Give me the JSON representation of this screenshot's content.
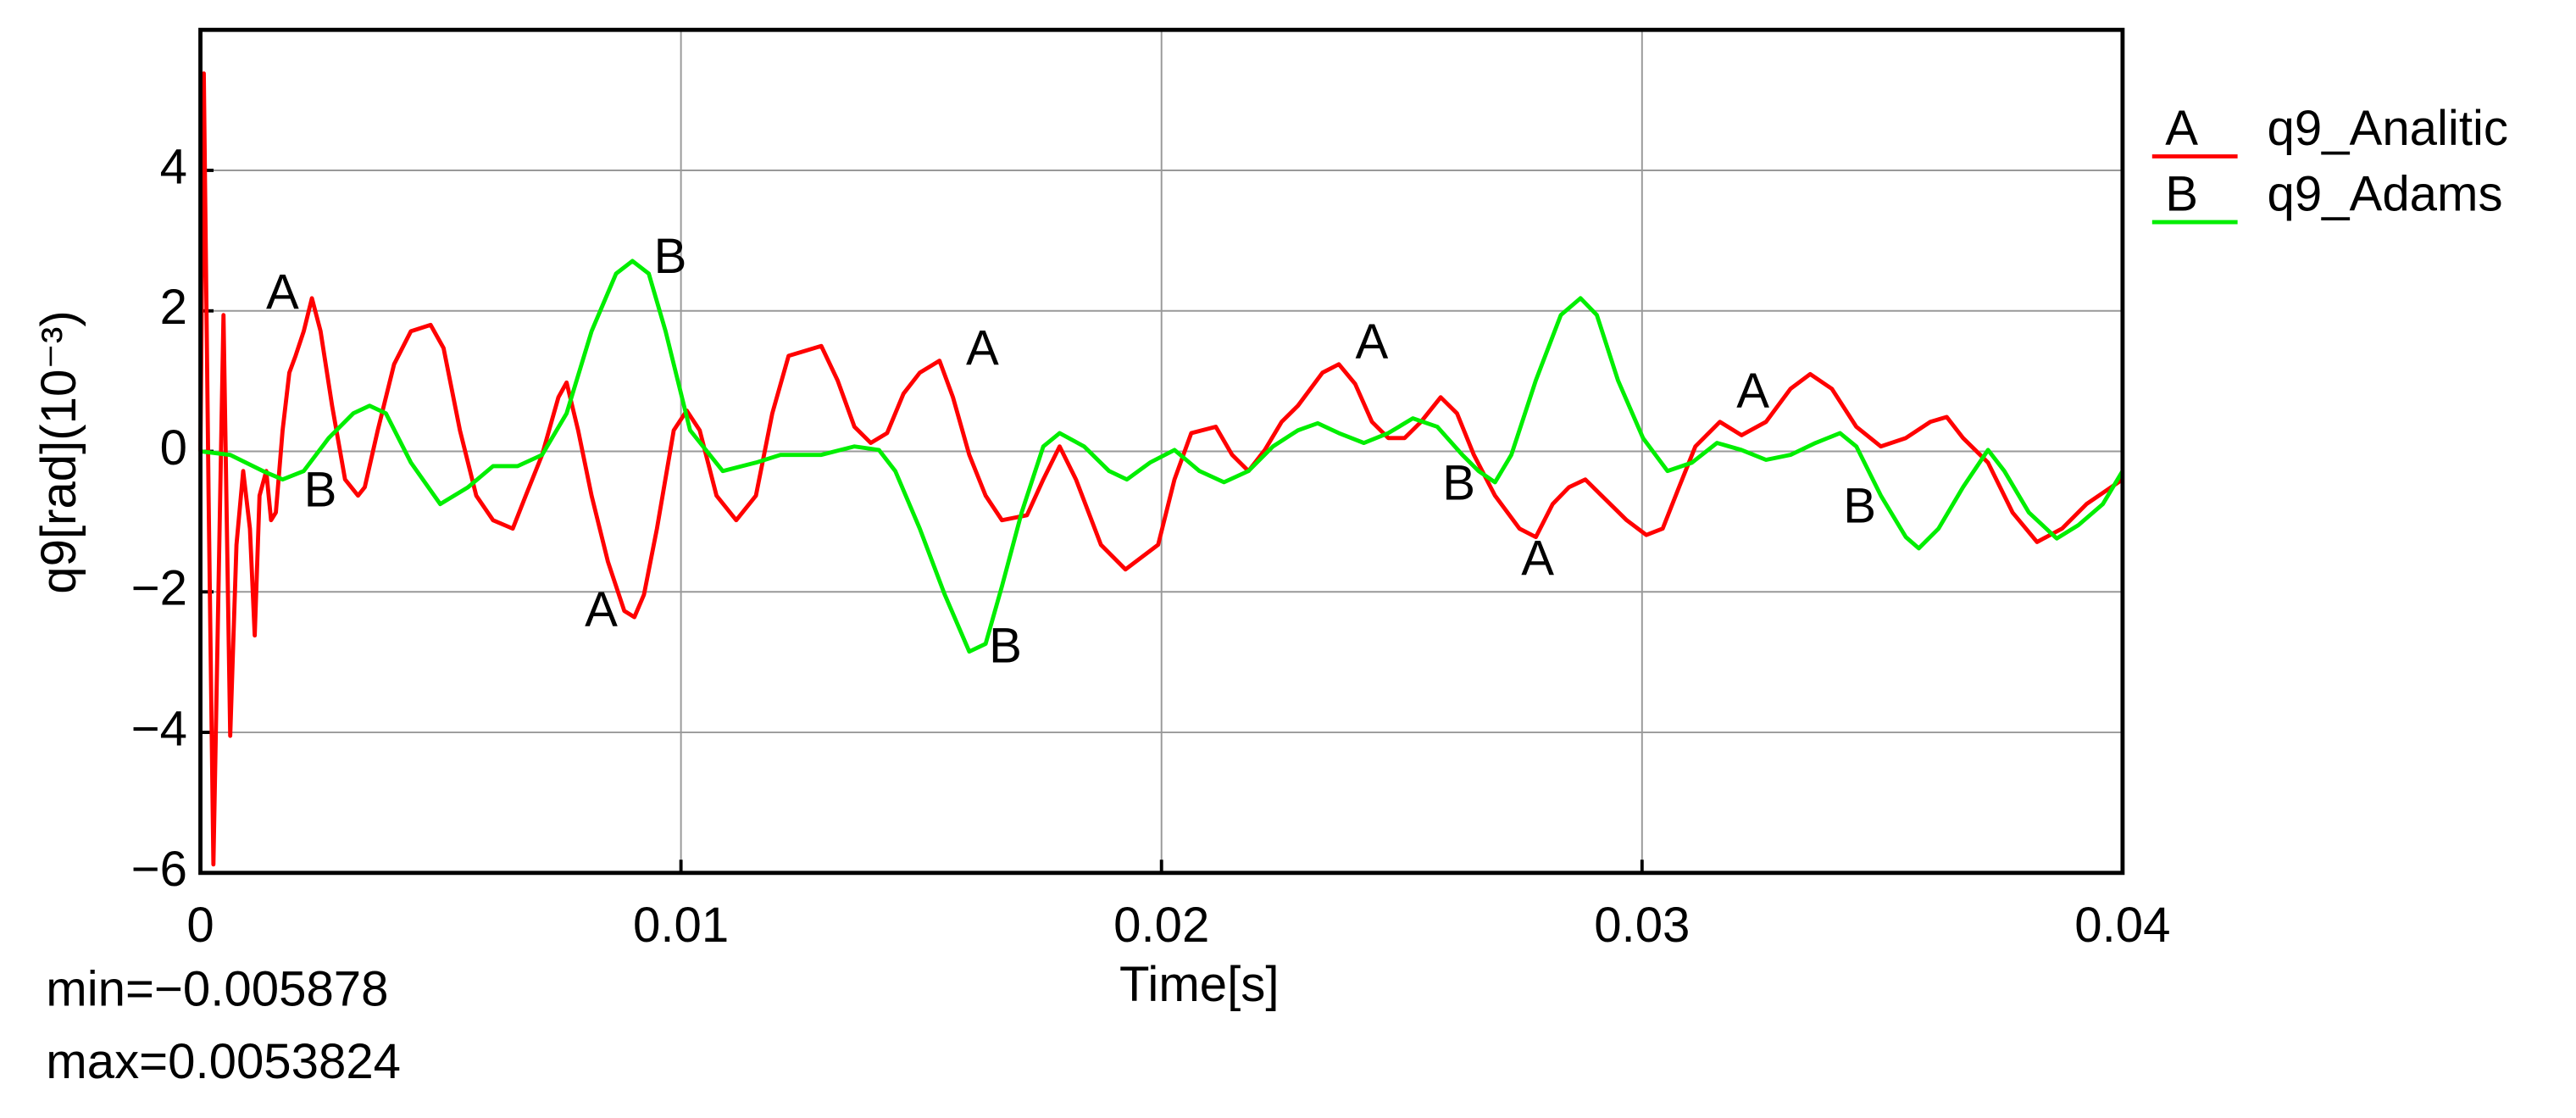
{
  "chart_data": {
    "type": "line",
    "x_label": "Time[s]",
    "y_label": "q9[rad](10⁻³)",
    "annotations": [
      "min=−0.005878",
      "max=0.0053824"
    ],
    "xlim": [
      0,
      0.04
    ],
    "xticks": [
      0,
      0.01,
      0.02,
      0.03,
      0.04
    ],
    "ylim": [
      -6,
      6
    ],
    "yticks": [
      {
        "value": -6,
        "label": "−6"
      },
      {
        "value": -4,
        "label": "−4"
      },
      {
        "value": -2,
        "label": "−2"
      },
      0,
      2,
      4
    ],
    "grid": true,
    "legend": "outside-right",
    "series": [
      {
        "name": "q9_Analitic",
        "label": "A",
        "color": "#ff0000",
        "x": [
          0,
          7e-05,
          0.00017,
          0.00027,
          0.00038,
          0.00048,
          0.00062,
          0.00075,
          0.00089,
          0.00103,
          0.00113,
          0.00123,
          0.00137,
          0.00147,
          0.00157,
          0.00171,
          0.00185,
          0.00198,
          0.00215,
          0.00232,
          0.0025,
          0.00274,
          0.00301,
          0.00328,
          0.00342,
          0.00369,
          0.00403,
          0.00438,
          0.00479,
          0.00506,
          0.0054,
          0.00574,
          0.00609,
          0.0065,
          0.00677,
          0.00711,
          0.00745,
          0.00762,
          0.00786,
          0.00814,
          0.00848,
          0.00882,
          0.00903,
          0.00923,
          0.0095,
          0.00985,
          0.01012,
          0.01039,
          0.01074,
          0.01115,
          0.01156,
          0.0119,
          0.01224,
          0.01292,
          0.01326,
          0.01361,
          0.01395,
          0.01429,
          0.01463,
          0.01497,
          0.01538,
          0.01566,
          0.016,
          0.01634,
          0.01668,
          0.0172,
          0.01754,
          0.01788,
          0.01822,
          0.01874,
          0.01925,
          0.01993,
          0.02027,
          0.02062,
          0.02113,
          0.02147,
          0.02181,
          0.02215,
          0.0225,
          0.02284,
          0.02335,
          0.02369,
          0.02403,
          0.02438,
          0.02472,
          0.02506,
          0.0254,
          0.02581,
          0.02615,
          0.0265,
          0.02694,
          0.02745,
          0.02779,
          0.02814,
          0.02848,
          0.02882,
          0.02916,
          0.02968,
          0.03009,
          0.03043,
          0.03077,
          0.03111,
          0.03162,
          0.03207,
          0.03258,
          0.03309,
          0.0335,
          0.03395,
          0.03446,
          0.03497,
          0.03549,
          0.036,
          0.03634,
          0.03668,
          0.0372,
          0.03771,
          0.03822,
          0.03874,
          0.03925,
          0.04
        ],
        "values": [
          0,
          5.38,
          -0.63,
          -5.88,
          -1.8,
          1.94,
          -4.05,
          -1.33,
          -0.28,
          -1.1,
          -2.62,
          -0.63,
          -0.28,
          -0.98,
          -0.87,
          0.3,
          1.12,
          1.36,
          1.71,
          2.18,
          1.71,
          0.65,
          -0.4,
          -0.63,
          -0.51,
          0.3,
          1.24,
          1.71,
          1.8,
          1.47,
          0.3,
          -0.63,
          -0.98,
          -1.1,
          -0.63,
          -0.05,
          0.77,
          0.98,
          0.3,
          -0.63,
          -1.57,
          -2.27,
          -2.36,
          -2.04,
          -1.1,
          0.3,
          0.58,
          0.3,
          -0.63,
          -0.98,
          -0.63,
          0.54,
          1.36,
          1.5,
          1.01,
          0.35,
          0.12,
          0.26,
          0.82,
          1.12,
          1.29,
          0.77,
          -0.05,
          -0.63,
          -0.98,
          -0.91,
          -0.4,
          0.07,
          -0.4,
          -1.33,
          -1.68,
          -1.33,
          -0.4,
          0.26,
          0.35,
          -0.05,
          -0.28,
          0.02,
          0.42,
          0.65,
          1.12,
          1.24,
          0.96,
          0.42,
          0.19,
          0.19,
          0.42,
          0.77,
          0.54,
          -0.05,
          -0.63,
          -1.1,
          -1.22,
          -0.75,
          -0.51,
          -0.4,
          -0.63,
          -0.98,
          -1.19,
          -1.1,
          -0.51,
          0.07,
          0.42,
          0.23,
          0.42,
          0.89,
          1.1,
          0.89,
          0.35,
          0.07,
          0.19,
          0.42,
          0.49,
          0.19,
          -0.16,
          -0.87,
          -1.29,
          -1.1,
          -0.75,
          -0.4
        ]
      },
      {
        "name": "q9_Adams",
        "label": "B",
        "color": "#00ee00",
        "x": [
          0,
          0.00062,
          0.0013,
          0.00171,
          0.00215,
          0.00267,
          0.00318,
          0.00352,
          0.00386,
          0.00438,
          0.00499,
          0.00557,
          0.00609,
          0.0066,
          0.00711,
          0.00762,
          0.00814,
          0.00865,
          0.00899,
          0.00933,
          0.00968,
          0.01019,
          0.01087,
          0.01156,
          0.01207,
          0.01292,
          0.01361,
          0.01412,
          0.01446,
          0.01497,
          0.01549,
          0.016,
          0.01634,
          0.01668,
          0.01709,
          0.01754,
          0.01788,
          0.01839,
          0.01891,
          0.01928,
          0.01976,
          0.02027,
          0.02079,
          0.0213,
          0.02181,
          0.02232,
          0.02284,
          0.02325,
          0.02369,
          0.02421,
          0.02472,
          0.02523,
          0.02574,
          0.02626,
          0.0266,
          0.02694,
          0.02728,
          0.02779,
          0.02831,
          0.02872,
          0.02906,
          0.0295,
          0.03002,
          0.03053,
          0.03104,
          0.03156,
          0.03207,
          0.03258,
          0.03309,
          0.03361,
          0.03412,
          0.03446,
          0.03497,
          0.03549,
          0.03576,
          0.03617,
          0.03668,
          0.0372,
          0.03754,
          0.03805,
          0.03863,
          0.03908,
          0.03959,
          0.04
        ],
        "values": [
          0,
          -0.05,
          -0.28,
          -0.4,
          -0.28,
          0.19,
          0.54,
          0.65,
          0.54,
          -0.16,
          -0.75,
          -0.51,
          -0.21,
          -0.21,
          -0.05,
          0.54,
          1.71,
          2.53,
          2.71,
          2.53,
          1.71,
          0.3,
          -0.28,
          -0.16,
          -0.05,
          -0.05,
          0.07,
          0.02,
          -0.28,
          -1.1,
          -2.04,
          -2.85,
          -2.74,
          -1.92,
          -0.87,
          0.07,
          0.26,
          0.07,
          -0.28,
          -0.4,
          -0.16,
          0.02,
          -0.28,
          -0.44,
          -0.28,
          0.07,
          0.3,
          0.4,
          0.26,
          0.12,
          0.26,
          0.47,
          0.35,
          -0.05,
          -0.28,
          -0.44,
          -0.05,
          1.01,
          1.94,
          2.18,
          1.94,
          1.01,
          0.19,
          -0.28,
          -0.16,
          0.12,
          0.02,
          -0.12,
          -0.05,
          0.12,
          0.26,
          0.07,
          -0.63,
          -1.22,
          -1.38,
          -1.1,
          -0.51,
          0.02,
          -0.28,
          -0.87,
          -1.24,
          -1.05,
          -0.75,
          -0.28
        ]
      }
    ]
  }
}
